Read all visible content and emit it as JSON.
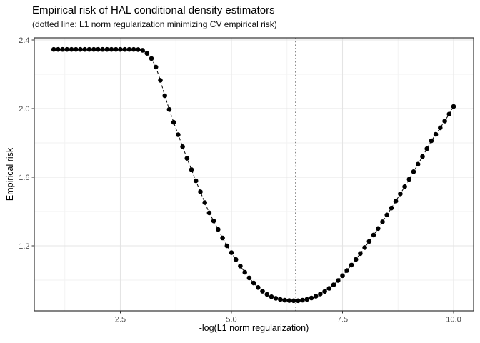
{
  "chart_data": {
    "type": "scatter",
    "title": "Empirical risk of HAL conditional density estimators",
    "subtitle": "(dotted line: L1 norm regularization minimizing CV empirical risk)",
    "xlabel": "-log(L1 norm regularization)",
    "ylabel": "Empirical risk",
    "x_tick_values": [
      2.5,
      5.0,
      7.5,
      10.0
    ],
    "x_tick_labels": [
      "2.5",
      "5.0",
      "7.5",
      "10.0"
    ],
    "y_tick_values": [
      1.2,
      1.6,
      2.0,
      2.4
    ],
    "y_tick_labels": [
      "1.2",
      "1.6",
      "2.0",
      "2.4"
    ],
    "x_minor_gridlines": [
      1.25,
      3.75,
      6.25,
      8.75
    ],
    "y_minor_gridlines": [
      1.0,
      1.4,
      1.8,
      2.2
    ],
    "xlim": [
      0.563,
      10.45
    ],
    "ylim": [
      0.8208,
      2.4125
    ],
    "grid": true,
    "legend": "none",
    "vline_x": 6.45,
    "vline_style": "dotted",
    "line_style": "dashed",
    "point_color": "#000000",
    "line_color": "#000000",
    "vline_color": "#000000",
    "grid_major_color": "#e4e4e4",
    "grid_minor_color": "#f2f2f2",
    "panel_border_color": "#333333",
    "tick_label_color": "#4d4d4d",
    "background_color": "#ffffff",
    "x": [
      1.0,
      1.1,
      1.2,
      1.3,
      1.4,
      1.5,
      1.6,
      1.7,
      1.8,
      1.9,
      2.0,
      2.1,
      2.2,
      2.3,
      2.4,
      2.5,
      2.6,
      2.7,
      2.8,
      2.9,
      3.0,
      3.1,
      3.2,
      3.3,
      3.4,
      3.5,
      3.6,
      3.7,
      3.8,
      3.9,
      4.0,
      4.1,
      4.2,
      4.3,
      4.4,
      4.5,
      4.6,
      4.7,
      4.8,
      4.9,
      5.0,
      5.1,
      5.2,
      5.3,
      5.4,
      5.5,
      5.6,
      5.7,
      5.8,
      5.9,
      6.0,
      6.1,
      6.2,
      6.3,
      6.4,
      6.5,
      6.6,
      6.7,
      6.8,
      6.9,
      7.0,
      7.1,
      7.2,
      7.3,
      7.4,
      7.5,
      7.6,
      7.7,
      7.8,
      7.9,
      8.0,
      8.1,
      8.2,
      8.3,
      8.4,
      8.5,
      8.6,
      8.7,
      8.8,
      8.9,
      9.0,
      9.1,
      9.2,
      9.3,
      9.4,
      9.5,
      9.6,
      9.7,
      9.8,
      9.9,
      10.0
    ],
    "y": [
      2.345,
      2.345,
      2.345,
      2.345,
      2.345,
      2.345,
      2.345,
      2.345,
      2.345,
      2.345,
      2.345,
      2.345,
      2.345,
      2.345,
      2.345,
      2.345,
      2.345,
      2.345,
      2.345,
      2.344,
      2.34,
      2.322,
      2.292,
      2.242,
      2.165,
      2.075,
      1.995,
      1.92,
      1.848,
      1.778,
      1.71,
      1.644,
      1.579,
      1.515,
      1.452,
      1.392,
      1.345,
      1.296,
      1.246,
      1.2,
      1.16,
      1.12,
      1.082,
      1.046,
      1.013,
      0.983,
      0.957,
      0.935,
      0.917,
      0.903,
      0.894,
      0.887,
      0.883,
      0.881,
      0.88,
      0.88,
      0.883,
      0.888,
      0.896,
      0.906,
      0.919,
      0.934,
      0.952,
      0.973,
      0.998,
      1.026,
      1.056,
      1.088,
      1.121,
      1.155,
      1.19,
      1.226,
      1.263,
      1.301,
      1.34,
      1.38,
      1.42,
      1.461,
      1.503,
      1.545,
      1.588,
      1.632,
      1.676,
      1.721,
      1.766,
      1.812,
      1.85,
      1.888,
      1.927,
      1.968,
      2.012
    ]
  }
}
